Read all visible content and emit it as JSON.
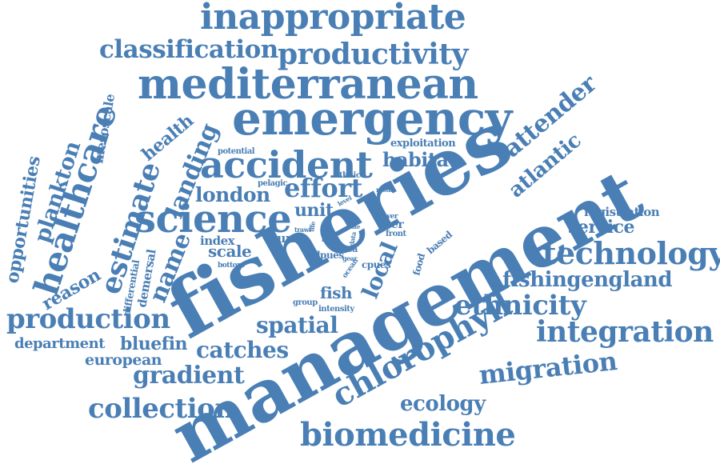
{
  "word_color": "#4a7fb5",
  "words": {
    "management": "management",
    "fisheries": "fisheries",
    "emergency": "emergency",
    "mediterranean": "mediterranean",
    "inappropriate": "inappropriate",
    "productivity": "productivity",
    "classification": "classification",
    "science": "science",
    "accident": "accident",
    "healthcare": "healthcare",
    "estimate": "estimate",
    "landing": "landing",
    "plankton": "plankton",
    "health": "health",
    "mesoscale": "mesoscale",
    "opportunities": "opportunities",
    "reason": "reason",
    "name": "name",
    "demersal": "demersal",
    "differential": "differential",
    "production": "production",
    "department": "department",
    "bluefin": "bluefin",
    "european": "european",
    "gradient": "gradient",
    "collection": "collection",
    "catches": "catches",
    "spatial": "spatial",
    "chlorophyll": "chlorophyll",
    "biomedicine": "biomedicine",
    "ecology": "ecology",
    "migration": "migration",
    "integration": "integration",
    "ethnicity": "ethnicity",
    "fishingengland": "fishingengland",
    "technology": "technology",
    "service": "service",
    "registration": "registration",
    "atlantic": "atlantic",
    "attender": "attender",
    "habitat": "habitat",
    "exploitation": "exploitation",
    "effort": "effort",
    "london": "london",
    "unit": "unit",
    "local": "local",
    "index": "index",
    "scale": "scale",
    "tuna": "tuna",
    "bottom": "bottom",
    "fish": "fish",
    "group": "group",
    "intensity": "intensity",
    "lpues": "lpues",
    "cpues": "cpues",
    "food": "food",
    "based": "based",
    "user": "user",
    "front": "front",
    "lower": "lower",
    "sea": "sea",
    "gear": "gear",
    "ocean": "ocean",
    "data": "data",
    "potential": "potential",
    "pelagic": "pelagic",
    "ethnic": "ethnic",
    "level": "level",
    "result": "result",
    "trawl": "trawl",
    "life": "life",
    "light": "light",
    "rate": "rate"
  }
}
